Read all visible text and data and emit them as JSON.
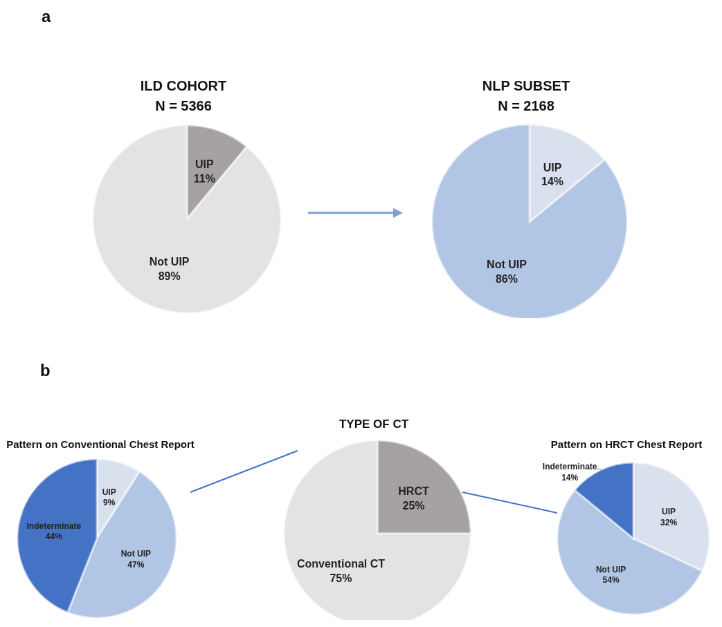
{
  "chart_data": [
    {
      "type": "pie",
      "title": "ILD COHORT",
      "subtitle": "N = 5366",
      "categories": [
        "UIP",
        "Not UIP"
      ],
      "values": [
        11,
        89
      ],
      "value_labels": [
        "11%",
        "89%"
      ],
      "colors": [
        "#a6a2a1",
        "#e3e3e3"
      ],
      "annotations": [
        "a"
      ]
    },
    {
      "type": "pie",
      "title": "NLP SUBSET",
      "subtitle": "N = 2168",
      "categories": [
        "UIP",
        "Not UIP"
      ],
      "values": [
        14,
        86
      ],
      "value_labels": [
        "14%",
        "86%"
      ],
      "colors": [
        "#d9e0ee",
        "#b1c5e4"
      ]
    },
    {
      "type": "pie",
      "title": "Pattern on Conventional Chest Report",
      "categories": [
        "UIP",
        "Not UIP",
        "Indeterminate"
      ],
      "values": [
        9,
        47,
        44
      ],
      "value_labels": [
        "9%",
        "47%",
        "44%"
      ],
      "colors": [
        "#d9e0ee",
        "#b1c5e4",
        "#4472c4"
      ],
      "annotations": [
        "b"
      ]
    },
    {
      "type": "pie",
      "title": "TYPE OF CT",
      "categories": [
        "HRCT",
        "Conventional CT"
      ],
      "values": [
        25,
        75
      ],
      "value_labels": [
        "25%",
        "75%"
      ],
      "colors": [
        "#a6a2a1",
        "#e3e3e3"
      ]
    },
    {
      "type": "pie",
      "title": "Pattern on HRCT Chest Report",
      "categories": [
        "UIP",
        "Not UIP",
        "Indeterminate"
      ],
      "values": [
        32,
        54,
        14
      ],
      "value_labels": [
        "32%",
        "54%",
        "14%"
      ],
      "colors": [
        "#d9e0ee",
        "#b1c5e4",
        "#4472c4"
      ]
    }
  ]
}
